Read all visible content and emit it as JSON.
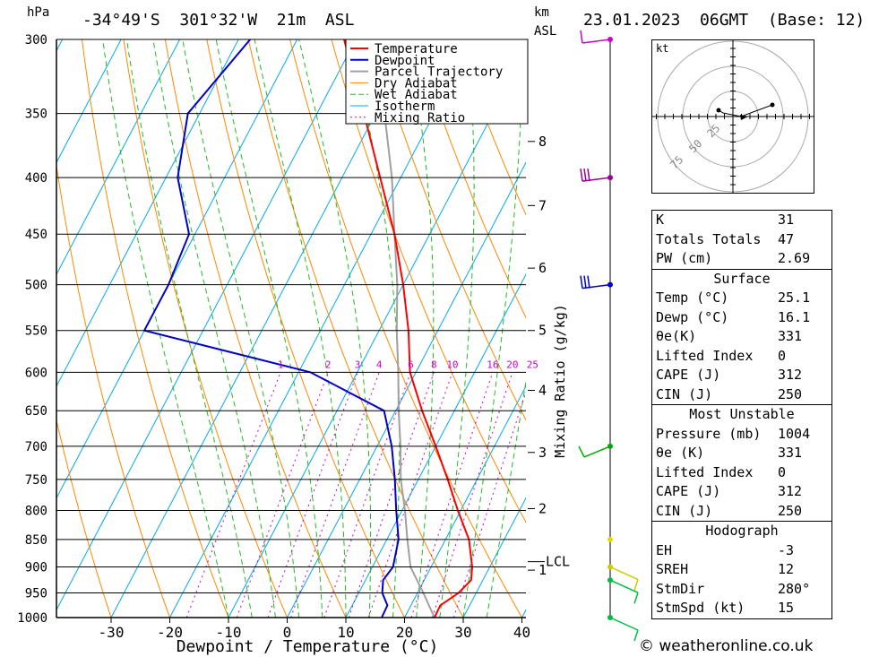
{
  "header": {
    "units_left": "hPa",
    "location": "-34°49'S  301°32'W  21m  ASL",
    "units_km": "km",
    "units_asl": "ASL",
    "datetime": "23.01.2023  06GMT  (Base: 12)"
  },
  "footer": {
    "copyright": "© weatheronline.co.uk"
  },
  "chart_data": {
    "type": "line",
    "xlabel": "Dewpoint / Temperature (°C)",
    "ylabel": "hPa",
    "y2label": "Mixing Ratio (g/kg)",
    "pressure_levels": [
      300,
      350,
      400,
      450,
      500,
      550,
      600,
      650,
      700,
      750,
      800,
      850,
      900,
      950,
      1000
    ],
    "x_ticks": [
      -30,
      -20,
      -10,
      0,
      10,
      20,
      30,
      40
    ],
    "xlim": [
      -40,
      40
    ],
    "km_ticks": [
      {
        "km": "1",
        "p": 906
      },
      {
        "km": "2",
        "p": 797
      },
      {
        "km": "3",
        "p": 709
      },
      {
        "km": "4",
        "p": 623
      },
      {
        "km": "5",
        "p": 550
      },
      {
        "km": "6",
        "p": 483
      },
      {
        "km": "7",
        "p": 424
      },
      {
        "km": "8",
        "p": 371
      }
    ],
    "lcl": {
      "label": "LCL",
      "p": 890
    },
    "mixing_ratio_labels": [
      "1",
      "2",
      "3",
      "4",
      "6",
      "8",
      "10",
      "16",
      "20",
      "25"
    ],
    "legend": [
      "Temperature",
      "Dewpoint",
      "Parcel Trajectory",
      "Dry Adiabat",
      "Wet Adiabat",
      "Isotherm",
      "Mixing Ratio"
    ],
    "legend_placement": "top-right",
    "series": [
      {
        "name": "Temperature",
        "color": "#ff0000",
        "points": [
          [
            1000,
            25.1
          ],
          [
            975,
            25
          ],
          [
            950,
            27
          ],
          [
            925,
            28
          ],
          [
            900,
            27
          ],
          [
            850,
            24
          ],
          [
            800,
            19.5
          ],
          [
            750,
            15
          ],
          [
            700,
            10
          ],
          [
            650,
            4.5
          ],
          [
            600,
            -1
          ],
          [
            550,
            -5
          ],
          [
            500,
            -10
          ],
          [
            450,
            -16
          ],
          [
            400,
            -23.5
          ],
          [
            350,
            -32
          ],
          [
            300,
            -42
          ]
        ]
      },
      {
        "name": "Dewpoint",
        "color": "#0000cc",
        "points": [
          [
            1000,
            16.1
          ],
          [
            975,
            16
          ],
          [
            950,
            14
          ],
          [
            925,
            13
          ],
          [
            900,
            13.5
          ],
          [
            850,
            12
          ],
          [
            800,
            9
          ],
          [
            750,
            6
          ],
          [
            700,
            2.5
          ],
          [
            650,
            -2
          ],
          [
            600,
            -18
          ],
          [
            550,
            -50
          ],
          [
            500,
            -50
          ],
          [
            450,
            -51
          ],
          [
            400,
            -58
          ],
          [
            350,
            -62
          ],
          [
            300,
            -58
          ]
        ]
      },
      {
        "name": "Parcel Trajectory",
        "color": "#a0a0a0",
        "points": [
          [
            1000,
            25.1
          ],
          [
            950,
            21
          ],
          [
            900,
            16.5
          ],
          [
            850,
            13.5
          ],
          [
            800,
            10.5
          ],
          [
            750,
            7
          ],
          [
            700,
            4
          ],
          [
            650,
            0.5
          ],
          [
            600,
            -3
          ],
          [
            550,
            -7
          ],
          [
            500,
            -11
          ],
          [
            450,
            -16
          ],
          [
            400,
            -21.5
          ],
          [
            350,
            -28.5
          ],
          [
            300,
            -37
          ]
        ]
      }
    ],
    "wind_barbs": [
      {
        "p": 300,
        "color": "#cc00cc"
      },
      {
        "p": 400,
        "color": "#990099"
      },
      {
        "p": 500,
        "color": "#0000cc"
      },
      {
        "p": 700,
        "color": "#00aa00"
      },
      {
        "p": 850,
        "color": "#dddd00"
      },
      {
        "p": 900,
        "color": "#cccc00"
      },
      {
        "p": 925,
        "color": "#00bb44"
      },
      {
        "p": 1000,
        "color": "#00bb44"
      }
    ]
  },
  "hodograph": {
    "unit": "kt",
    "rings": [
      "25",
      "50",
      "75"
    ]
  },
  "stats": {
    "top": [
      {
        "label": "K",
        "value": "31"
      },
      {
        "label": "Totals Totals",
        "value": "47"
      },
      {
        "label": "PW (cm)",
        "value": "2.69"
      }
    ],
    "surface_title": "Surface",
    "surface": [
      {
        "label": "Temp (°C)",
        "value": "25.1"
      },
      {
        "label": "Dewp (°C)",
        "value": "16.1"
      },
      {
        "label": "θe(K)",
        "value": "331"
      },
      {
        "label": "Lifted Index",
        "value": "0"
      },
      {
        "label": "CAPE (J)",
        "value": "312"
      },
      {
        "label": "CIN (J)",
        "value": "250"
      }
    ],
    "mu_title": "Most Unstable",
    "mu": [
      {
        "label": "Pressure (mb)",
        "value": "1004"
      },
      {
        "label": "θe (K)",
        "value": "331"
      },
      {
        "label": "Lifted Index",
        "value": "0"
      },
      {
        "label": "CAPE (J)",
        "value": "312"
      },
      {
        "label": "CIN (J)",
        "value": "250"
      }
    ],
    "hodo_title": "Hodograph",
    "hodo": [
      {
        "label": "EH",
        "value": "-3"
      },
      {
        "label": "SREH",
        "value": "12"
      },
      {
        "label": "StmDir",
        "value": "280°"
      },
      {
        "label": "StmSpd (kt)",
        "value": "15"
      }
    ]
  }
}
